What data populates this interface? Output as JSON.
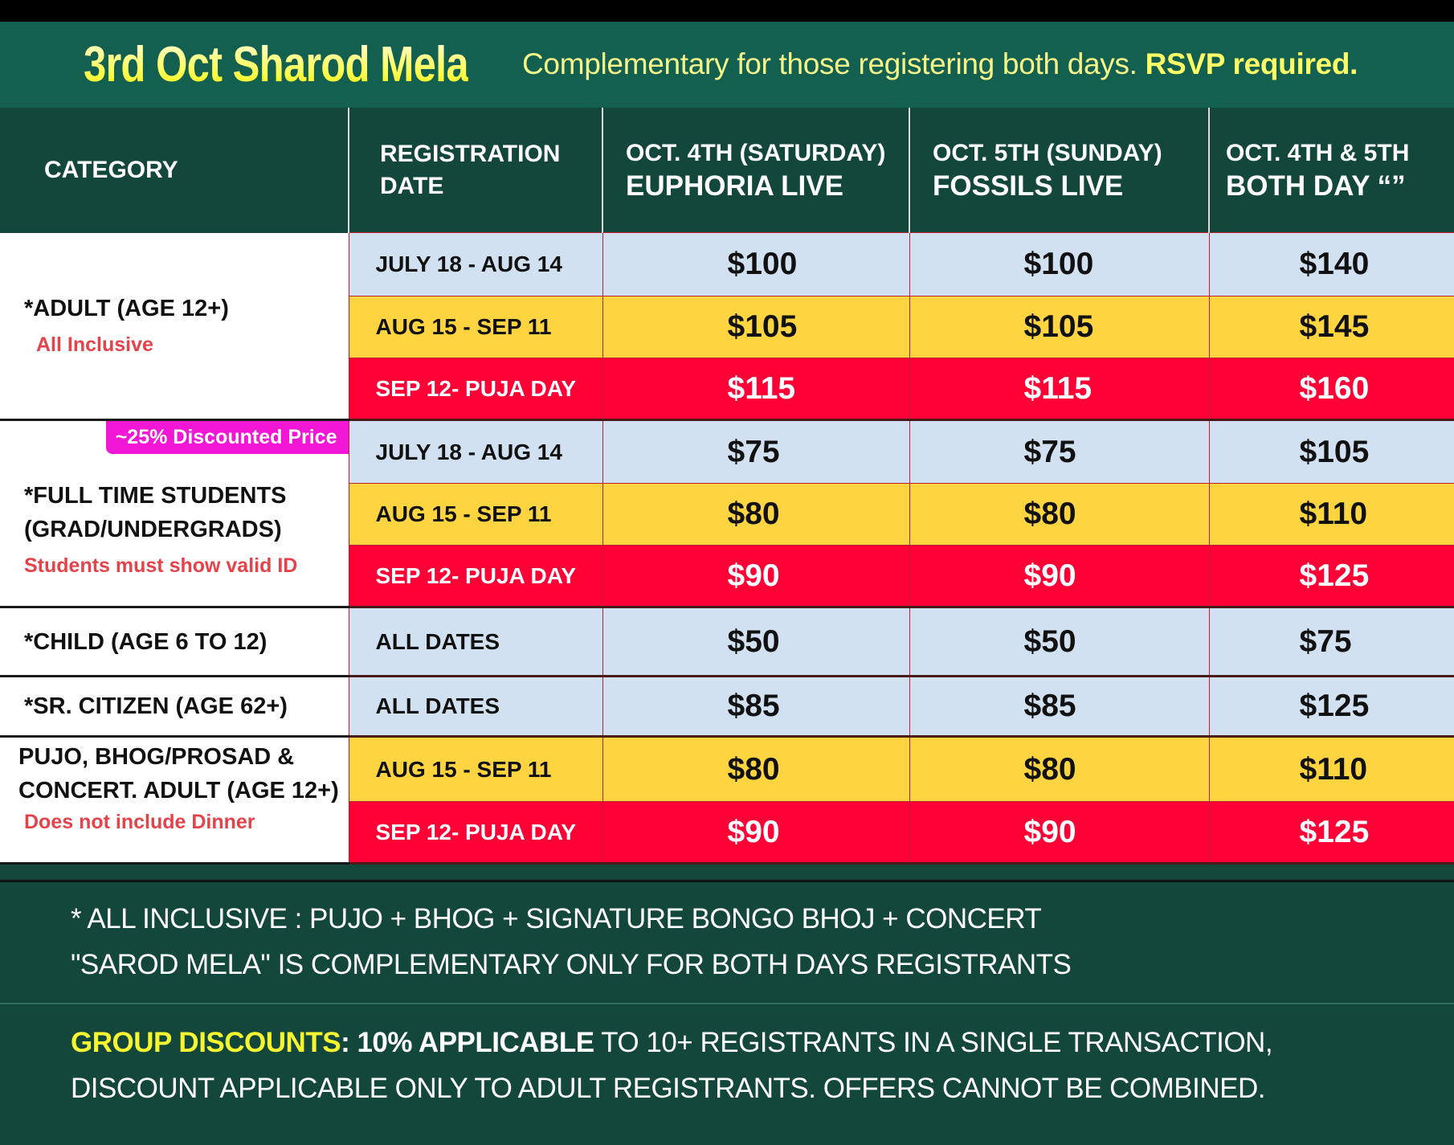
{
  "header": {
    "title": "3rd Oct Sharod Mela",
    "tagline_regular": "Complementary for those registering both days.",
    "tagline_bold": "RSVP required."
  },
  "columns": {
    "category": "CATEGORY",
    "registration_line1": "REGISTRATION",
    "registration_line2": "DATE",
    "day1_line1": "OCT. 4TH (SATURDAY)",
    "day1_line2": "EUPHORIA LIVE",
    "day2_line1": "OCT. 5TH (SUNDAY)",
    "day2_line2": "FOSSILS LIVE",
    "both_line1": "OCT. 4TH & 5TH",
    "both_line2": "BOTH DAY “”"
  },
  "categories": [
    {
      "name_lines": [
        "*ADULT (AGE 12+)"
      ],
      "note": "All Inclusive",
      "badge": "",
      "tiers": [
        {
          "date": "JULY 18 - AUG 14",
          "tier": "blue",
          "prices": [
            "$100",
            "$100",
            "$140"
          ]
        },
        {
          "date": "AUG 15 - SEP 11",
          "tier": "yellow",
          "prices": [
            "$105",
            "$105",
            "$145"
          ]
        },
        {
          "date": "SEP 12- PUJA DAY",
          "tier": "red",
          "prices": [
            "$115",
            "$115",
            "$160"
          ]
        }
      ]
    },
    {
      "name_lines": [
        "*FULL TIME STUDENTS",
        "(GRAD/UNDERGRADS)"
      ],
      "note": "Students must show valid ID",
      "badge": "~25% Discounted Price",
      "tiers": [
        {
          "date": "JULY 18 - AUG 14",
          "tier": "blue",
          "prices": [
            "$75",
            "$75",
            "$105"
          ]
        },
        {
          "date": "AUG 15 - SEP 11",
          "tier": "yellow",
          "prices": [
            "$80",
            "$80",
            "$110"
          ]
        },
        {
          "date": "SEP 12- PUJA DAY",
          "tier": "red",
          "prices": [
            "$90",
            "$90",
            "$125"
          ]
        }
      ]
    },
    {
      "name_lines": [
        "*CHILD (AGE 6 TO 12)"
      ],
      "note": "",
      "badge": "",
      "tiers": [
        {
          "date": "ALL DATES",
          "tier": "blue",
          "prices": [
            "$50",
            "$50",
            "$75"
          ]
        }
      ]
    },
    {
      "name_lines": [
        "*SR. CITIZEN (AGE 62+)"
      ],
      "note": "",
      "badge": "",
      "tiers": [
        {
          "date": "ALL DATES",
          "tier": "blue",
          "prices": [
            "$85",
            "$85",
            "$125"
          ]
        }
      ]
    },
    {
      "name_lines": [
        "PUJO, BHOG/PROSAD &",
        "CONCERT. ADULT (AGE 12+)"
      ],
      "note": "Does not include Dinner",
      "badge": "",
      "tiers": [
        {
          "date": "AUG 15 - SEP 11",
          "tier": "yellow",
          "prices": [
            "$80",
            "$80",
            "$110"
          ]
        },
        {
          "date": "SEP 12- PUJA DAY",
          "tier": "red",
          "prices": [
            "$90",
            "$90",
            "$125"
          ]
        }
      ]
    }
  ],
  "notes": {
    "line1": "* ALL INCLUSIVE : PUJO + BHOG + SIGNATURE BONGO BHOJ + CONCERT",
    "line2": "\"SAROD MELA\"  IS COMPLEMENTARY ONLY FOR BOTH DAYS REGISTRANTS"
  },
  "group_discount": {
    "label": "GROUP DISCOUNTS",
    "colon": ":",
    "bold": "10% APPLICABLE",
    "rest_line1": " TO 10+ REGISTRANTS IN A SINGLE TRANSACTION,",
    "line2": "DISCOUNT APPLICABLE ONLY TO ADULT REGISTRANTS. OFFERS CANNOT BE COMBINED."
  },
  "colors": {
    "header_green": "#136050",
    "table_header_green": "#14473b",
    "tier_blue": "#d2e1f2",
    "tier_yellow": "#fed441",
    "tier_red": "#ff0036",
    "note_red": "#e5434a",
    "badge_magenta": "#f117d4",
    "title_yellow": "#ffff66"
  }
}
